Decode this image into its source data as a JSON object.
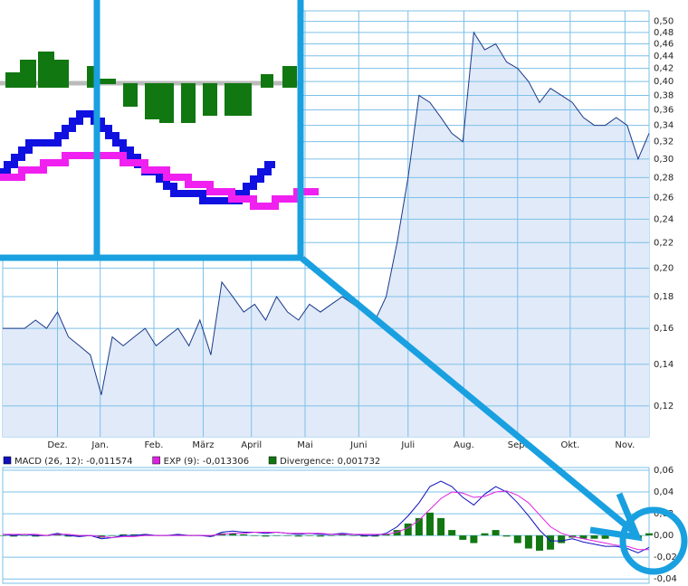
{
  "chart_data": [
    {
      "type": "area",
      "log": true,
      "grid": true,
      "xlim": [
        0,
        59
      ],
      "ylim": [
        0.107,
        0.52
      ],
      "xticks": [
        {
          "value": 5,
          "label": "Dez."
        },
        {
          "value": 8.9,
          "label": "Jan."
        },
        {
          "value": 13.8,
          "label": "Feb."
        },
        {
          "value": 18.3,
          "label": "März"
        },
        {
          "value": 22.7,
          "label": "April"
        },
        {
          "value": 27.6,
          "label": "Mai"
        },
        {
          "value": 32.5,
          "label": "Juni"
        },
        {
          "value": 37,
          "label": "Juli"
        },
        {
          "value": 42.1,
          "label": "Aug."
        },
        {
          "value": 47,
          "label": "Sep."
        },
        {
          "value": 51.8,
          "label": "Okt."
        },
        {
          "value": 56.8,
          "label": "Nov."
        }
      ],
      "yticks": [
        {
          "value": 0.12,
          "label": "0,12"
        },
        {
          "value": 0.14,
          "label": "0,14"
        },
        {
          "value": 0.16,
          "label": "0,16"
        },
        {
          "value": 0.18,
          "label": "0,18"
        },
        {
          "value": 0.2,
          "label": "0,20"
        },
        {
          "value": 0.22,
          "label": "0,22"
        },
        {
          "value": 0.24,
          "label": "0,24"
        },
        {
          "value": 0.26,
          "label": "0,26"
        },
        {
          "value": 0.28,
          "label": "0,28"
        },
        {
          "value": 0.3,
          "label": "0,30"
        },
        {
          "value": 0.32,
          "label": "0,32"
        },
        {
          "value": 0.34,
          "label": "0,34"
        },
        {
          "value": 0.36,
          "label": "0,36"
        },
        {
          "value": 0.38,
          "label": "0,38"
        },
        {
          "value": 0.4,
          "label": "0,40"
        },
        {
          "value": 0.42,
          "label": "0,42"
        },
        {
          "value": 0.44,
          "label": "0,44"
        },
        {
          "value": 0.46,
          "label": "0,46"
        },
        {
          "value": 0.48,
          "label": "0,48"
        },
        {
          "value": 0.5,
          "label": "0,50"
        }
      ],
      "color": "#1a3a8a",
      "fill": "#e1eaf8",
      "values": [
        0.16,
        0.16,
        0.16,
        0.165,
        0.16,
        0.17,
        0.155,
        0.15,
        0.145,
        0.125,
        0.155,
        0.15,
        0.155,
        0.16,
        0.15,
        0.155,
        0.16,
        0.15,
        0.165,
        0.145,
        0.19,
        0.18,
        0.17,
        0.175,
        0.165,
        0.18,
        0.17,
        0.165,
        0.175,
        0.17,
        0.175,
        0.18,
        0.175,
        0.17,
        0.165,
        0.18,
        0.22,
        0.28,
        0.38,
        0.37,
        0.35,
        0.33,
        0.32,
        0.48,
        0.45,
        0.46,
        0.43,
        0.42,
        0.4,
        0.37,
        0.39,
        0.38,
        0.37,
        0.35,
        0.34,
        0.34,
        0.35,
        0.34,
        0.3,
        0.33
      ]
    },
    {
      "type": "macd",
      "grid": true,
      "xlim": [
        0,
        59
      ],
      "ylim": [
        -0.044,
        0.0625
      ],
      "yticks": [
        {
          "value": 0.06,
          "label": "0,06"
        },
        {
          "value": 0.04,
          "label": "0,04"
        },
        {
          "value": 0.02,
          "label": "0,02"
        },
        {
          "value": 0,
          "label": "0,00"
        },
        {
          "value": -0.02,
          "label": "-0,02"
        },
        {
          "value": -0.04,
          "label": "-0,04"
        }
      ],
      "series": [
        {
          "name": "MACD (26, 12): -0,011574",
          "color": "#1010c0",
          "kind": "line",
          "values": [
            0.001,
            0,
            0.001,
            0,
            0,
            0.002,
            0,
            -0.001,
            0,
            -0.003,
            -0.002,
            0,
            0,
            0.001,
            0,
            0,
            0.001,
            0,
            0,
            -0.001,
            0.003,
            0.004,
            0.003,
            0.003,
            0.002,
            0.003,
            0.002,
            0.001,
            0.002,
            0.001,
            0.001,
            0.002,
            0.001,
            0,
            0,
            0.002,
            0.008,
            0.018,
            0.03,
            0.045,
            0.05,
            0.045,
            0.035,
            0.028,
            0.038,
            0.045,
            0.04,
            0.03,
            0.018,
            0.005,
            -0.005,
            -0.005,
            -0.003,
            -0.006,
            -0.008,
            -0.01,
            -0.01,
            -0.012,
            -0.016,
            -0.011
          ]
        },
        {
          "name": "EXP (9): -0,013306",
          "color": "#e020e0",
          "kind": "line",
          "values": [
            0.001,
            0.001,
            0.001,
            0.001,
            0,
            0.001,
            0.001,
            0,
            0,
            -0.001,
            -0.002,
            -0.001,
            -0.001,
            0,
            0,
            0,
            0,
            0,
            0,
            0,
            0.001,
            0.002,
            0.002,
            0.003,
            0.003,
            0.003,
            0.002,
            0.002,
            0.002,
            0.002,
            0.001,
            0.001,
            0.001,
            0.001,
            0.001,
            0.001,
            0.003,
            0.007,
            0.014,
            0.024,
            0.034,
            0.04,
            0.039,
            0.035,
            0.036,
            0.04,
            0.041,
            0.037,
            0.03,
            0.019,
            0.008,
            0.002,
            -0.001,
            -0.003,
            -0.005,
            -0.007,
            -0.009,
            -0.01,
            -0.013,
            -0.013
          ]
        },
        {
          "name": "Divergence: 0,001732",
          "color": "#117711",
          "kind": "bar",
          "values": [
            0,
            -0.001,
            0,
            -0.001,
            0,
            0.001,
            -0.001,
            -0.001,
            0,
            -0.002,
            0,
            0.001,
            0.001,
            0.001,
            0,
            0,
            0.001,
            0,
            0,
            -0.001,
            0.002,
            0.002,
            0.001,
            0,
            -0.001,
            0,
            0,
            -0.001,
            0,
            -0.001,
            0,
            0.001,
            0,
            -0.001,
            -0.001,
            0.001,
            0.005,
            0.011,
            0.016,
            0.021,
            0.016,
            0.005,
            -0.004,
            -0.007,
            0.002,
            0.005,
            -0.001,
            -0.007,
            -0.012,
            -0.014,
            -0.013,
            -0.007,
            -0.002,
            -0.003,
            -0.003,
            -0.003,
            -0.001,
            -0.002,
            -0.003,
            0.002
          ]
        }
      ]
    }
  ]
}
